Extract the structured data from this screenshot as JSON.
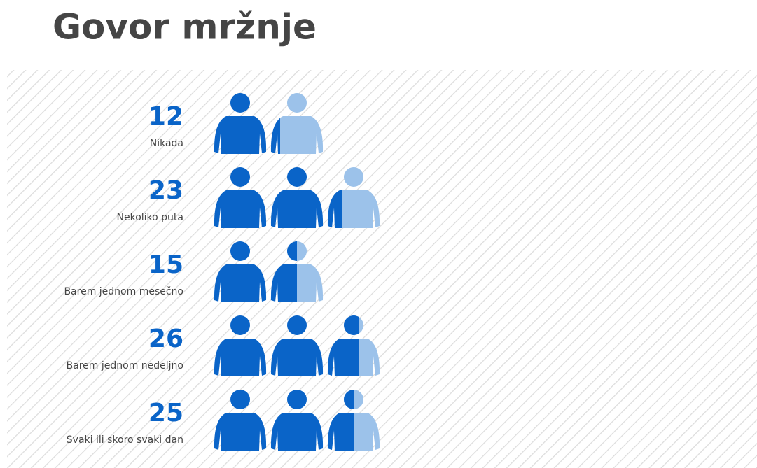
{
  "chart_data": {
    "type": "pictograph",
    "title": "Govor mržnje",
    "categories": [
      "Nikada",
      "Nekoliko puta",
      "Barem jednom mesečno",
      "Barem jednom nedeljno",
      "Svaki ili skoro svaki dan"
    ],
    "values": [
      12,
      23,
      15,
      26,
      25
    ],
    "color": "#0a64c8",
    "light_color": "#9cc2ea",
    "xlim": [
      0,
      30
    ]
  }
}
